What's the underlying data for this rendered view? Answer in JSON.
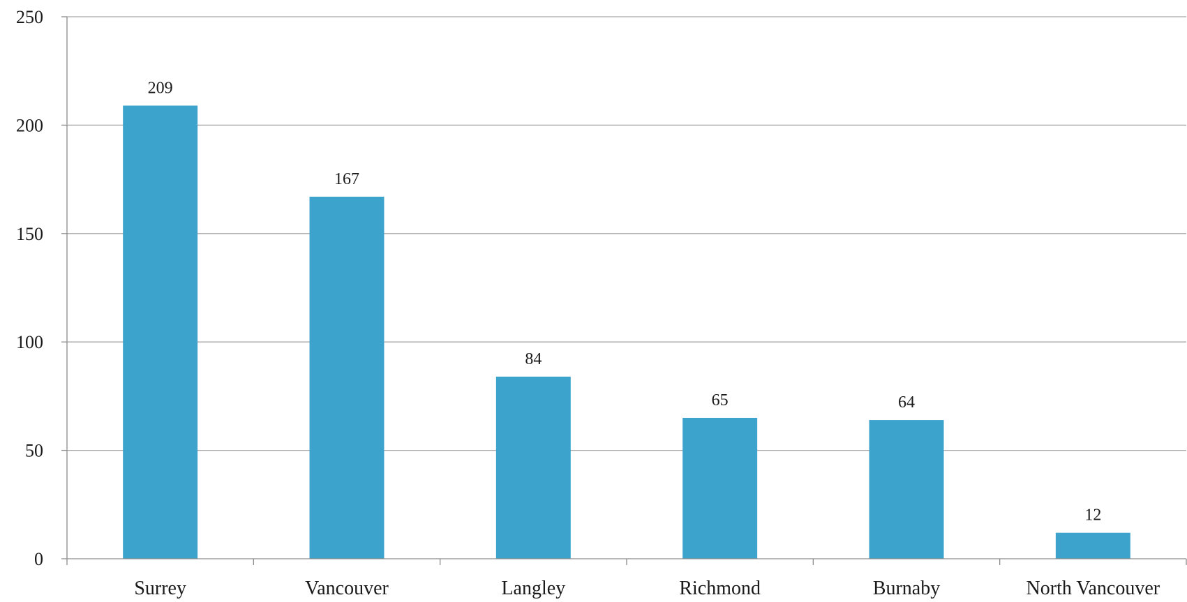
{
  "chart_data": {
    "type": "bar",
    "categories": [
      "Surrey",
      "Vancouver",
      "Langley",
      "Richmond",
      "Burnaby",
      "North Vancouver"
    ],
    "values": [
      209,
      167,
      84,
      65,
      64,
      12
    ],
    "data_labels": [
      "209",
      "167",
      "84",
      "65",
      "64",
      "12"
    ],
    "y_ticks": [
      "0",
      "50",
      "100",
      "150",
      "200",
      "250"
    ],
    "ylim": [
      0,
      250
    ],
    "grid": true,
    "legend": "none",
    "colors": {
      "bar": "#3ba3cc",
      "grid": "#a6a6a6",
      "axis": "#8c8c8c"
    }
  }
}
